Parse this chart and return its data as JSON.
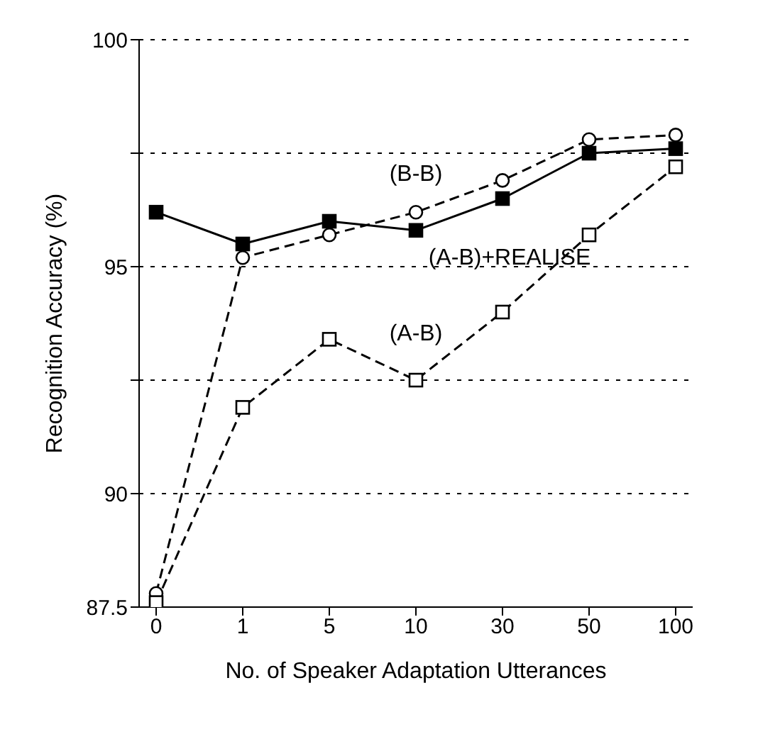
{
  "chart_data": {
    "type": "line",
    "xlabel": "No. of Speaker Adaptation Utterances",
    "ylabel": "Recognition Accuracy (%)",
    "categories": [
      "0",
      "1",
      "5",
      "10",
      "30",
      "50",
      "100"
    ],
    "series": [
      {
        "name": "(B-B)",
        "color": "#000000",
        "marker": "circle",
        "line_style": "dashed",
        "values": [
          87.8,
          95.2,
          95.7,
          96.2,
          96.9,
          97.8,
          97.9
        ]
      },
      {
        "name": "(A-B)+REALISE",
        "color": "#000000",
        "marker": "square",
        "line_style": "solid",
        "values": [
          96.2,
          95.5,
          96.0,
          95.8,
          96.5,
          97.5,
          97.6
        ]
      },
      {
        "name": "(A-B)",
        "color": "#000000",
        "marker": "square",
        "line_style": "dashed",
        "values": [
          87.6,
          91.9,
          93.4,
          92.5,
          94.0,
          95.7,
          97.2
        ]
      }
    ],
    "ylim": [
      87.5,
      100
    ],
    "yticks": [
      87.5,
      90,
      {
        "value": 92.5,
        "label": null
      },
      95,
      {
        "value": 97.5,
        "label": null
      },
      100
    ],
    "grid": "y"
  }
}
